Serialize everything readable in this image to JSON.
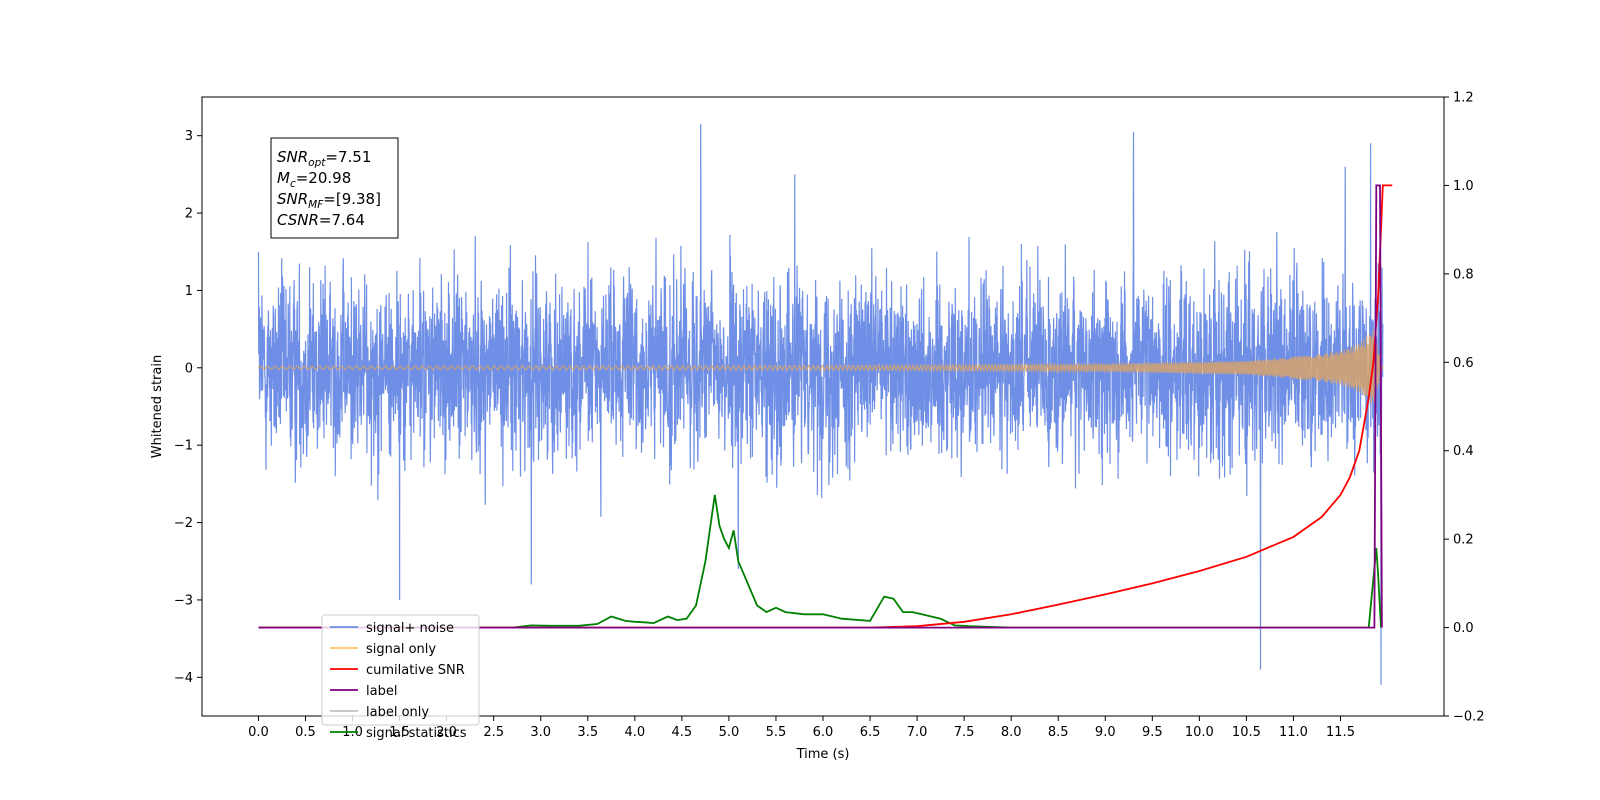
{
  "chart_data": {
    "type": "line",
    "title": "",
    "xlabel": "Time (s)",
    "ylabel": "Whitened strain",
    "y2label": "",
    "xlim": [
      -0.6,
      12.6
    ],
    "ylim": [
      -4.5,
      3.5
    ],
    "y2lim": [
      -0.2,
      1.2
    ],
    "xticks": [
      "0.0",
      "0.5",
      "1.0",
      "1.5",
      "2.0",
      "2.5",
      "3.0",
      "3.5",
      "4.0",
      "4.5",
      "5.0",
      "5.5",
      "6.0",
      "6.5",
      "7.0",
      "7.5",
      "8.0",
      "8.5",
      "9.0",
      "9.5",
      "10.0",
      "10.5",
      "11.0",
      "11.5"
    ],
    "yticks": [
      "3",
      "2",
      "1",
      "0",
      "−1",
      "−2",
      "−3",
      "−4"
    ],
    "y2ticks": [
      "1.2",
      "1.0",
      "0.8",
      "0.6",
      "0.4",
      "0.2",
      "0.0",
      "−0.2"
    ],
    "grid": false,
    "legend_position": "lower-left",
    "legend": [
      {
        "name": "signal+ noise",
        "color": "#6f8fe6"
      },
      {
        "name": "signal only",
        "color": "#ffc66b"
      },
      {
        "name": "cumilative SNR",
        "color": "#ff0000"
      },
      {
        "name": "label",
        "color": "#800080"
      },
      {
        "name": "label only",
        "color": "#c0c0c0"
      },
      {
        "name": "signal statistics",
        "color": "#008000"
      }
    ],
    "annotation": {
      "lines": [
        {
          "base": "SNR",
          "sub": "opt",
          "rest": "=7.51"
        },
        {
          "base": "M",
          "sub": "c",
          "rest": "=20.98"
        },
        {
          "base": "SNR",
          "sub": "MF",
          "rest": "=[9.38]"
        },
        {
          "base": "CSNR",
          "sub": "",
          "rest": "=7.64"
        }
      ]
    },
    "series": [
      {
        "name": "signal+ noise",
        "axis": "left",
        "color": "#6f8fe6",
        "description_points": {
          "x": [
            0.0,
            1.5,
            2.9,
            4.7,
            5.1,
            5.7,
            9.3,
            10.65,
            11.55,
            11.82,
            11.93
          ],
          "y": [
            1.5,
            -3.0,
            -2.8,
            3.15,
            -2.6,
            2.5,
            3.05,
            -3.9,
            2.6,
            2.9,
            -4.1
          ]
        }
      },
      {
        "name": "signal only",
        "axis": "left",
        "color": "#d8a36a",
        "amplitude_envelope": {
          "x": [
            0.0,
            6.0,
            9.0,
            10.5,
            11.2,
            11.5,
            11.7,
            11.85,
            11.95
          ],
          "y": [
            0.02,
            0.03,
            0.05,
            0.09,
            0.16,
            0.22,
            0.32,
            0.5,
            0.0
          ]
        }
      },
      {
        "name": "cumilative SNR",
        "axis": "right",
        "color": "#ff0000",
        "x": [
          0.0,
          6.5,
          7.0,
          7.5,
          8.0,
          8.5,
          9.0,
          9.5,
          10.0,
          10.5,
          11.0,
          11.3,
          11.5,
          11.6,
          11.7,
          11.8,
          11.85,
          11.9,
          11.93,
          11.95,
          12.0,
          12.05
        ],
        "y": [
          0.0,
          0.0,
          0.003,
          0.013,
          0.03,
          0.052,
          0.075,
          0.1,
          0.128,
          0.16,
          0.205,
          0.25,
          0.3,
          0.34,
          0.4,
          0.52,
          0.6,
          0.75,
          0.9,
          1.0,
          1.0,
          1.0
        ]
      },
      {
        "name": "label",
        "axis": "right",
        "color": "#800080",
        "x": [
          0.0,
          11.86,
          11.88,
          11.92,
          11.94
        ],
        "y": [
          0.0,
          0.0,
          1.0,
          1.0,
          0.0
        ]
      },
      {
        "name": "signal statistics",
        "axis": "right",
        "color": "#008000",
        "x": [
          0.0,
          2.7,
          2.9,
          3.1,
          3.4,
          3.6,
          3.75,
          3.9,
          4.0,
          4.1,
          4.2,
          4.35,
          4.45,
          4.55,
          4.65,
          4.75,
          4.85,
          4.9,
          4.95,
          5.0,
          5.05,
          5.1,
          5.2,
          5.3,
          5.4,
          5.5,
          5.6,
          5.8,
          6.0,
          6.2,
          6.5,
          6.65,
          6.75,
          6.85,
          6.95,
          7.05,
          7.15,
          7.25,
          7.4,
          7.55,
          8.0,
          11.8,
          11.88,
          11.9,
          11.93
        ],
        "y": [
          0.0,
          0.0,
          0.005,
          0.004,
          0.004,
          0.008,
          0.025,
          0.015,
          0.013,
          0.012,
          0.01,
          0.025,
          0.017,
          0.02,
          0.05,
          0.15,
          0.3,
          0.23,
          0.2,
          0.18,
          0.22,
          0.15,
          0.1,
          0.05,
          0.035,
          0.045,
          0.035,
          0.03,
          0.03,
          0.02,
          0.015,
          0.07,
          0.065,
          0.035,
          0.035,
          0.03,
          0.025,
          0.02,
          0.005,
          0.003,
          0.0,
          0.0,
          0.18,
          0.12,
          0.0
        ]
      }
    ]
  }
}
